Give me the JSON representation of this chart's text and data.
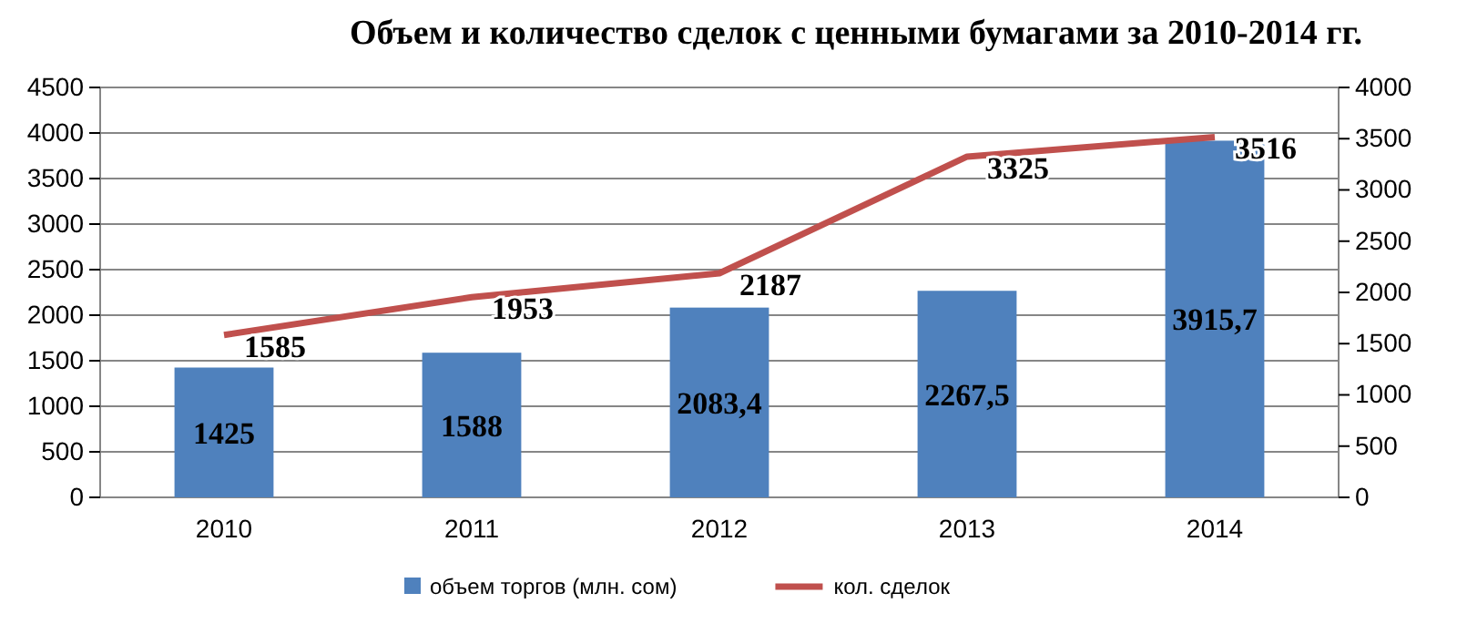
{
  "chart_data": {
    "type": "bar",
    "title": "Объем и количество сделок с ценными бумагами за 2010-2014 гг.",
    "categories": [
      "2010",
      "2011",
      "2012",
      "2013",
      "2014"
    ],
    "series": [
      {
        "name": "объем торгов (млн. сом)",
        "color": "#4f81bd",
        "values": [
          1425,
          1588,
          2083.4,
          2267.5,
          3915.7
        ],
        "value_labels": [
          "1425",
          "1588",
          "2083,4",
          "2267,5",
          "3915,7"
        ]
      },
      {
        "name": "кол. сделок",
        "type": "line",
        "axis": "y2",
        "color": "#c0504d",
        "values": [
          1585,
          1953,
          2187,
          3325,
          3516
        ],
        "value_labels": [
          "1585",
          "1953",
          "2187",
          "3325",
          "3516"
        ]
      }
    ],
    "ylim": [
      0,
      4500
    ],
    "yticks": [
      0,
      500,
      1000,
      1500,
      2000,
      2500,
      3000,
      3500,
      4000,
      4500
    ],
    "y2lim": [
      0,
      4000
    ],
    "y2ticks": [
      0,
      500,
      1000,
      1500,
      2000,
      2500,
      3000,
      3500,
      4000
    ],
    "grid": "y",
    "legend": "bottom",
    "marker": "none",
    "line_style": "solid"
  }
}
